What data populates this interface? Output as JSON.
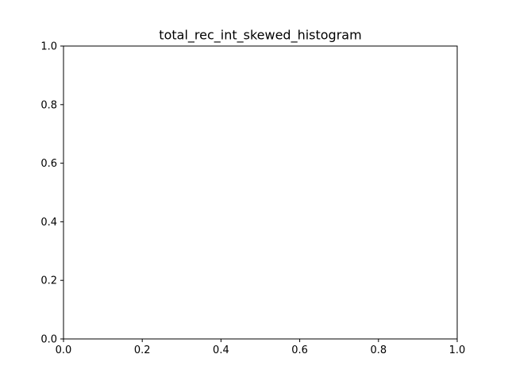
{
  "chart_data": {
    "type": "bar",
    "title": "total_rec_int_skewed_histogram",
    "xlabel": "",
    "ylabel": "",
    "xlim": [
      0.0,
      1.0
    ],
    "ylim": [
      0.0,
      1.0
    ],
    "x_ticks": [
      "0.0",
      "0.2",
      "0.4",
      "0.6",
      "0.8",
      "1.0"
    ],
    "y_ticks": [
      "0.0",
      "0.2",
      "0.4",
      "0.6",
      "0.8",
      "1.0"
    ],
    "categories": [],
    "values": [],
    "grid": false,
    "legend": "none"
  }
}
